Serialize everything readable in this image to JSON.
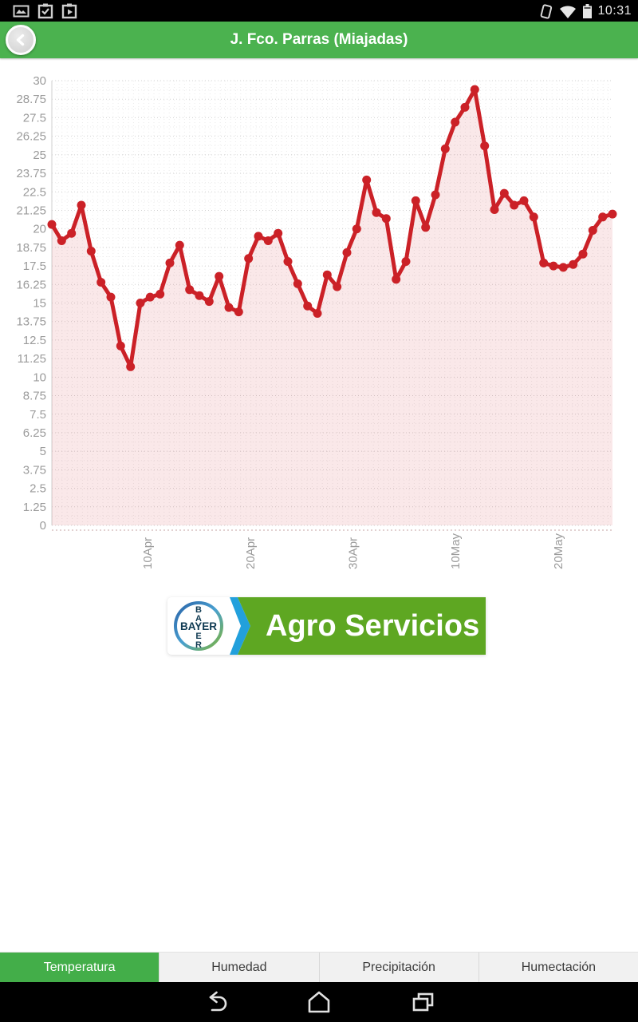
{
  "status_bar": {
    "time": "10:31",
    "icons_left": [
      "screenshot-icon",
      "clipboard-check-icon",
      "clipboard-play-icon"
    ],
    "icons_right": [
      "rotate-icon",
      "wifi-icon",
      "battery-icon"
    ]
  },
  "header": {
    "title": "J. Fco. Parras (Miajadas)"
  },
  "chart_data": {
    "type": "line",
    "title": "",
    "xlabel": "",
    "ylabel": "",
    "ylim": [
      0,
      30
    ],
    "ytick_step": 1.25,
    "grid": true,
    "legend": "none",
    "series_name": "Temperatura",
    "yticks": [
      "30",
      "28.75",
      "27.5",
      "26.25",
      "25",
      "23.75",
      "22.5",
      "21.25",
      "20",
      "18.75",
      "17.5",
      "16.25",
      "15",
      "13.75",
      "12.5",
      "11.25",
      "10",
      "8.75",
      "7.5",
      "6.25",
      "5",
      "3.75",
      "2.5",
      "1.25",
      "0"
    ],
    "x_labels": [
      {
        "label": "10Apr",
        "f": 0.171
      },
      {
        "label": "20Apr",
        "f": 0.354
      },
      {
        "label": "30Apr",
        "f": 0.537
      },
      {
        "label": "10May",
        "f": 0.72
      },
      {
        "label": "20May",
        "f": 0.903
      }
    ],
    "values": [
      20.3,
      19.2,
      19.7,
      21.6,
      18.5,
      16.4,
      15.4,
      12.1,
      10.7,
      15.0,
      15.4,
      15.6,
      17.7,
      18.9,
      15.9,
      15.5,
      15.1,
      16.8,
      14.7,
      14.4,
      18.0,
      19.5,
      19.2,
      19.7,
      17.8,
      16.3,
      14.8,
      14.3,
      16.9,
      16.1,
      18.4,
      20.0,
      23.3,
      21.1,
      20.7,
      16.6,
      17.8,
      21.9,
      20.1,
      22.3,
      25.4,
      27.2,
      28.2,
      29.4,
      25.6,
      21.3,
      22.4,
      21.6,
      21.9,
      20.8,
      17.7,
      17.5,
      17.4,
      17.6,
      18.3,
      19.9,
      20.8,
      21.0
    ],
    "line_color": "#cb2127",
    "fill_color": "rgba(203,33,39,0.10)",
    "grid_major_color": "#d2d2d2",
    "grid_minor_color": "#ebebeb",
    "axis_label_color": "#9b9b9b"
  },
  "logo": {
    "brand": "BAYER",
    "banner_text": "Agro Servicios",
    "green": "#5ea722",
    "blue": "#22a0dc",
    "navy": "#0f3a52"
  },
  "tabs": [
    {
      "label": "Temperatura",
      "active": true
    },
    {
      "label": "Humedad",
      "active": false
    },
    {
      "label": "Precipitación",
      "active": false
    },
    {
      "label": "Humectación",
      "active": false
    }
  ],
  "nav_bar": {
    "icons": [
      "back-icon",
      "home-icon",
      "recents-icon"
    ]
  },
  "colors": {
    "header_green": "#4bb24f",
    "tab_green": "#43ae49"
  }
}
